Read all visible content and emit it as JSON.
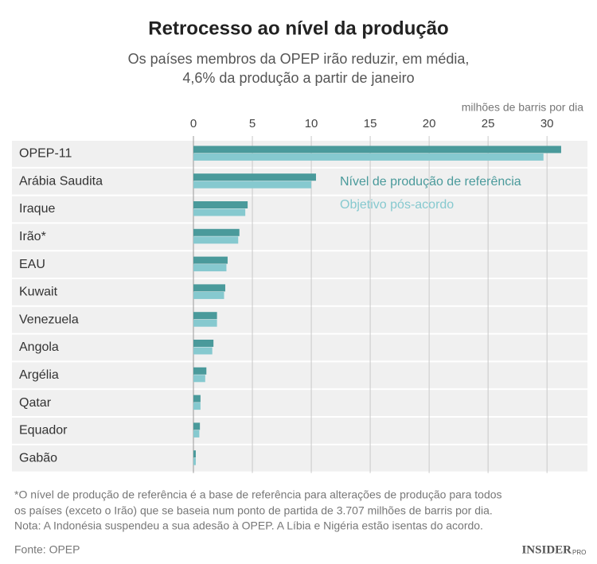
{
  "chart_data": {
    "type": "bar",
    "orientation": "horizontal",
    "title": "Retrocesso ao nível da produção",
    "subtitle": [
      "Os países membros da OPEP irão reduzir, em média,",
      "4,6% da produção a partir de janeiro"
    ],
    "x_label": "milhões de barris por dia",
    "categories": [
      "OPEP-11",
      "Arábia Saudita",
      "Iraque",
      "Irão*",
      "EAU",
      "Kuwait",
      "Venezuela",
      "Angola",
      "Argélia",
      "Qatar",
      "Equador",
      "Gabão"
    ],
    "series": [
      {
        "name": "Nível de produção de referência",
        "color": "#4a9a9b",
        "values": [
          31.2,
          10.4,
          4.6,
          3.9,
          2.9,
          2.7,
          2.0,
          1.7,
          1.1,
          0.6,
          0.55,
          0.2
        ]
      },
      {
        "name": "Objetivo pós-acordo",
        "color": "#86c9cf",
        "values": [
          29.7,
          10.0,
          4.4,
          3.8,
          2.8,
          2.6,
          2.0,
          1.6,
          1.0,
          0.6,
          0.5,
          0.2
        ]
      }
    ],
    "xlim": [
      0,
      33.5
    ],
    "xticks": [
      0,
      5,
      10,
      15,
      20,
      25,
      30
    ],
    "grid": true,
    "footnotes": [
      "*O nível de produção de referência é a base de referência para alterações de produção para todos",
      "os países (exceto o Irão) que se baseia num ponto de partida de 3.707 milhões de barris por dia.",
      "Nota: A Indonésia suspendeu a sua adesão à OPEP. A Líbia e Nigéria estão isentas do acordo."
    ],
    "source": "Fonte: OPEP",
    "logo": "INSIDER",
    "logo_suffix": "PRO"
  }
}
